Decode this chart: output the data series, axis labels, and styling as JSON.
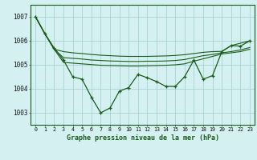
{
  "x": [
    0,
    1,
    2,
    3,
    4,
    5,
    6,
    7,
    8,
    9,
    10,
    11,
    12,
    13,
    14,
    15,
    16,
    17,
    18,
    19,
    20,
    21,
    22,
    23
  ],
  "main_p": [
    1007.0,
    1006.3,
    1005.7,
    1005.2,
    1004.5,
    1004.4,
    1003.65,
    1003.0,
    1003.2,
    1003.9,
    1004.05,
    1004.6,
    1004.46,
    1004.3,
    1004.1,
    1004.1,
    1004.5,
    1005.2,
    1004.4,
    1004.55,
    1005.55,
    1005.8,
    1005.78,
    1006.0
  ],
  "band1": [
    1007.0,
    1006.3,
    1005.65,
    1005.55,
    1005.5,
    1005.47,
    1005.43,
    1005.4,
    1005.38,
    1005.36,
    1005.35,
    1005.35,
    1005.35,
    1005.36,
    1005.37,
    1005.39,
    1005.42,
    1005.47,
    1005.52,
    1005.55,
    1005.56,
    1005.8,
    1005.9,
    1006.0
  ],
  "band2": [
    1007.0,
    1006.3,
    1005.65,
    1005.3,
    1005.27,
    1005.24,
    1005.2,
    1005.18,
    1005.16,
    1005.15,
    1005.14,
    1005.14,
    1005.15,
    1005.15,
    1005.16,
    1005.18,
    1005.22,
    1005.3,
    1005.38,
    1005.43,
    1005.5,
    1005.55,
    1005.62,
    1005.72
  ],
  "band3": [
    1007.0,
    1006.3,
    1005.65,
    1005.1,
    1005.07,
    1005.04,
    1005.01,
    1004.98,
    1004.97,
    1004.96,
    1004.95,
    1004.95,
    1004.96,
    1004.97,
    1004.98,
    1005.0,
    1005.04,
    1005.15,
    1005.25,
    1005.35,
    1005.45,
    1005.5,
    1005.55,
    1005.65
  ],
  "line_color": "#1a5c1a",
  "bg_color": "#d4f0f0",
  "grid_color": "#9ecece",
  "xlabel": "Graphe pression niveau de la mer (hPa)",
  "ylim": [
    1002.5,
    1007.5
  ],
  "yticks": [
    1003,
    1004,
    1005,
    1006,
    1007
  ],
  "xlim": [
    -0.5,
    23.5
  ]
}
